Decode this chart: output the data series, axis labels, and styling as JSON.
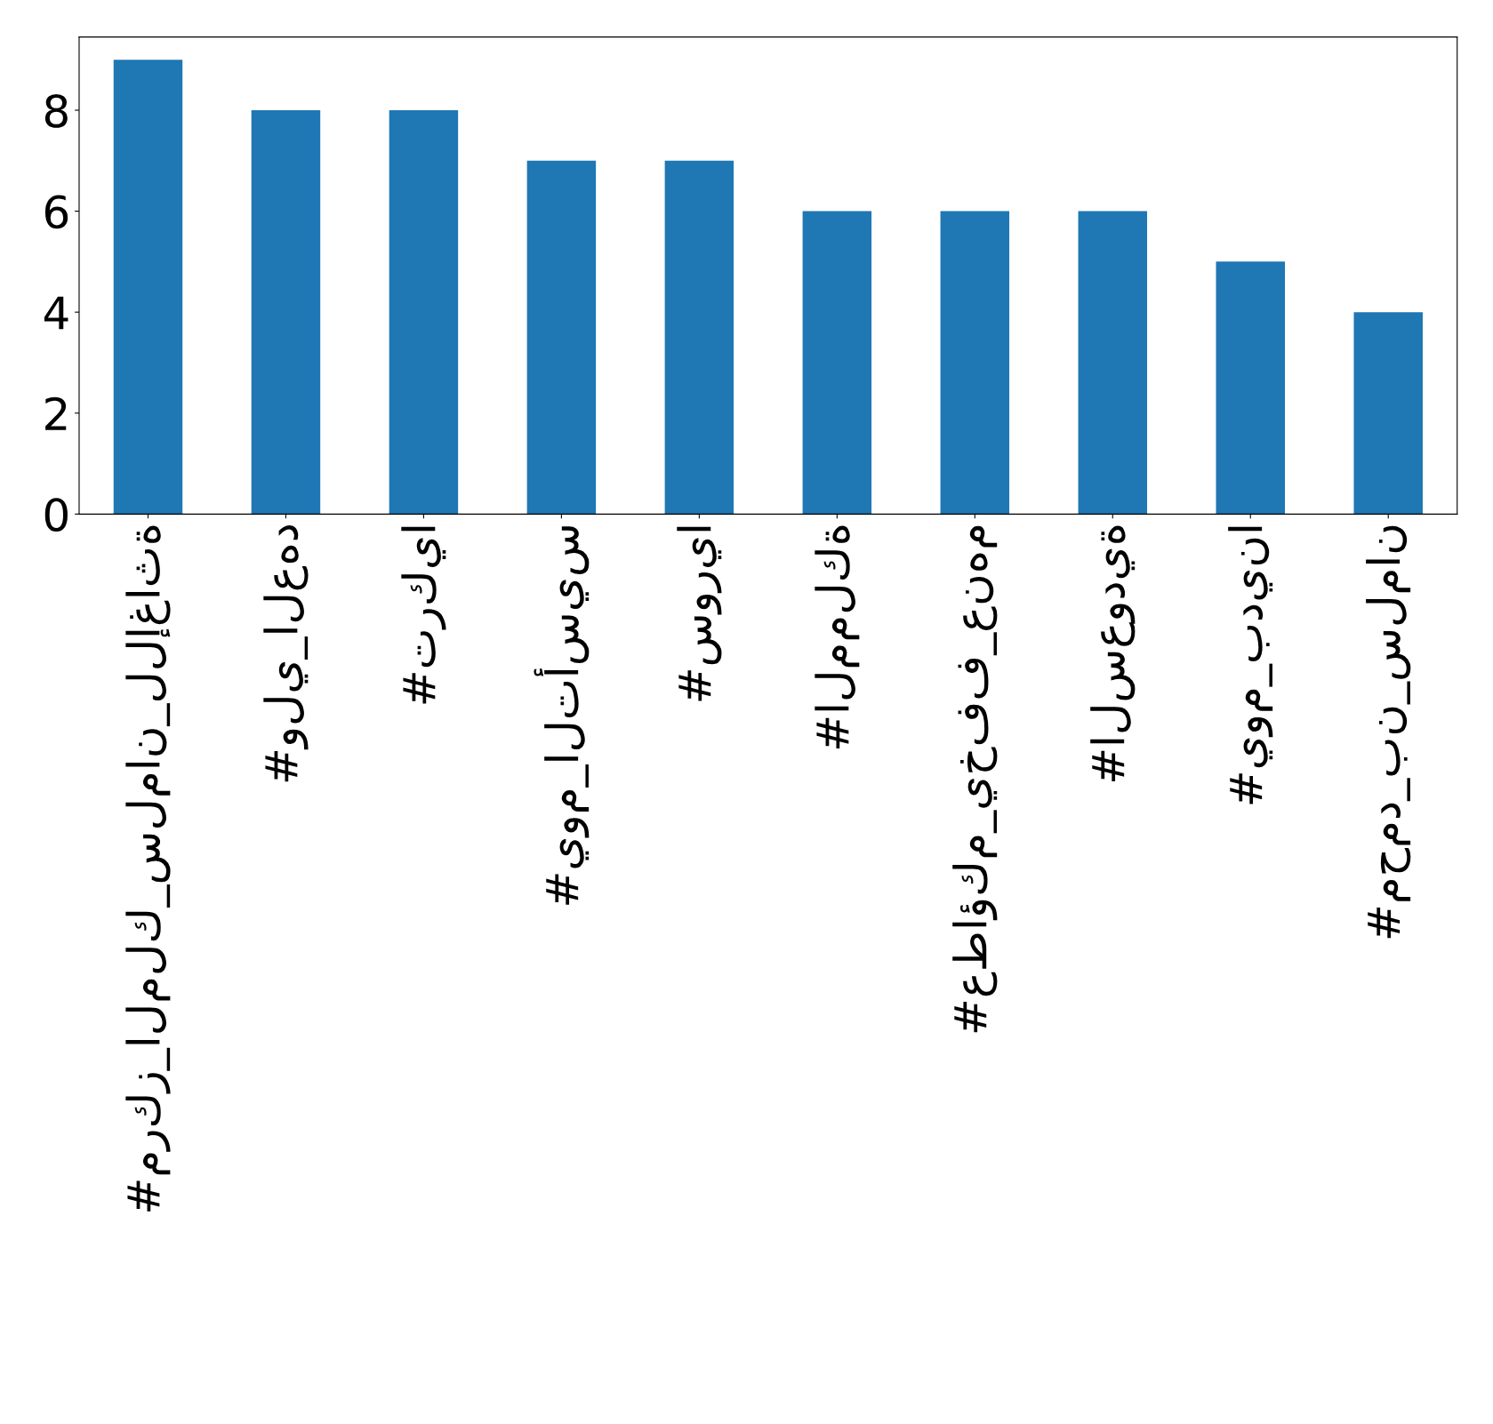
{
  "chart_data": {
    "type": "bar",
    "categories": [
      "#مركز_الملك_سلمان_للإغاثة",
      "#ولي_العهد",
      "#تركيا",
      "#يوم_التأسيس",
      "#سوريا",
      "#المملكة",
      "#عطاؤكم_يخفف_عنهم",
      "#السعودية",
      "#يوم_بدينا",
      "#محمد_بن_سلمان"
    ],
    "values": [
      9,
      8,
      8,
      7,
      7,
      6,
      6,
      6,
      5,
      4
    ],
    "color": "#1f77b4",
    "ylim": [
      0,
      9.45
    ],
    "yticks": [
      0,
      2,
      4,
      6,
      8
    ],
    "grid": false,
    "legend": false
  }
}
